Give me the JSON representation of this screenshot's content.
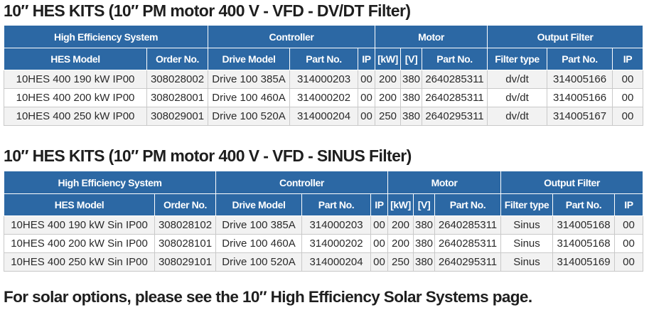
{
  "table1": {
    "title": "10″ HES KITS (10″ PM motor 400 V - VFD - DV/DT Filter)",
    "groups": [
      "High Efficiency System",
      "Controller",
      "Motor",
      "Output Filter"
    ],
    "columns": [
      "HES Model",
      "Order No.",
      "Drive Model",
      "Part No.",
      "IP",
      "[kW]",
      "[V]",
      "Part No.",
      "Filter type",
      "Part No.",
      "IP"
    ],
    "rows": [
      [
        "10HES 400 190 kW IP00",
        "308028002",
        "Drive 100 385A",
        "314000203",
        "00",
        "200",
        "380",
        "2640285311",
        "dv/dt",
        "314005166",
        "00"
      ],
      [
        "10HES 400 200 kW IP00",
        "308028001",
        "Drive 100 460A",
        "314000202",
        "00",
        "200",
        "380",
        "2640285311",
        "dv/dt",
        "314005166",
        "00"
      ],
      [
        "10HES 400 250 kW IP00",
        "308029001",
        "Drive 100 520A",
        "314000204",
        "00",
        "250",
        "380",
        "2640295311",
        "dv/dt",
        "314005167",
        "00"
      ]
    ]
  },
  "table2": {
    "title": "10″ HES KITS (10″ PM motor 400 V - VFD - SINUS Filter)",
    "groups": [
      "High Efficiency System",
      "Controller",
      "Motor",
      "Output Filter"
    ],
    "columns": [
      "HES Model",
      "Order No.",
      "Drive Model",
      "Part No.",
      "IP",
      "[kW]",
      "[V]",
      "Part No.",
      "Filter type",
      "Part No.",
      "IP"
    ],
    "rows": [
      [
        "10HES 400 190 kW Sin IP00",
        "308028102",
        "Drive 100 385A",
        "314000203",
        "00",
        "200",
        "380",
        "2640285311",
        "Sinus",
        "314005168",
        "00"
      ],
      [
        "10HES 400 200 kW Sin IP00",
        "308028101",
        "Drive 100 460A",
        "314000202",
        "00",
        "200",
        "380",
        "2640285311",
        "Sinus",
        "314005168",
        "00"
      ],
      [
        "10HES 400 250 kW Sin IP00",
        "308029101",
        "Drive 100 520A",
        "314000204",
        "00",
        "250",
        "380",
        "2640295311",
        "Sinus",
        "314005169",
        "00"
      ]
    ]
  },
  "footer": {
    "note": "For solar options, please see the 10″ High Efficiency Solar Systems page."
  },
  "colors": {
    "header_bg": "#2c68a4",
    "header_text": "#ffffff",
    "row_odd": "#f2f2f2",
    "row_even": "#ffffff",
    "grid": "#c9c9c9"
  }
}
